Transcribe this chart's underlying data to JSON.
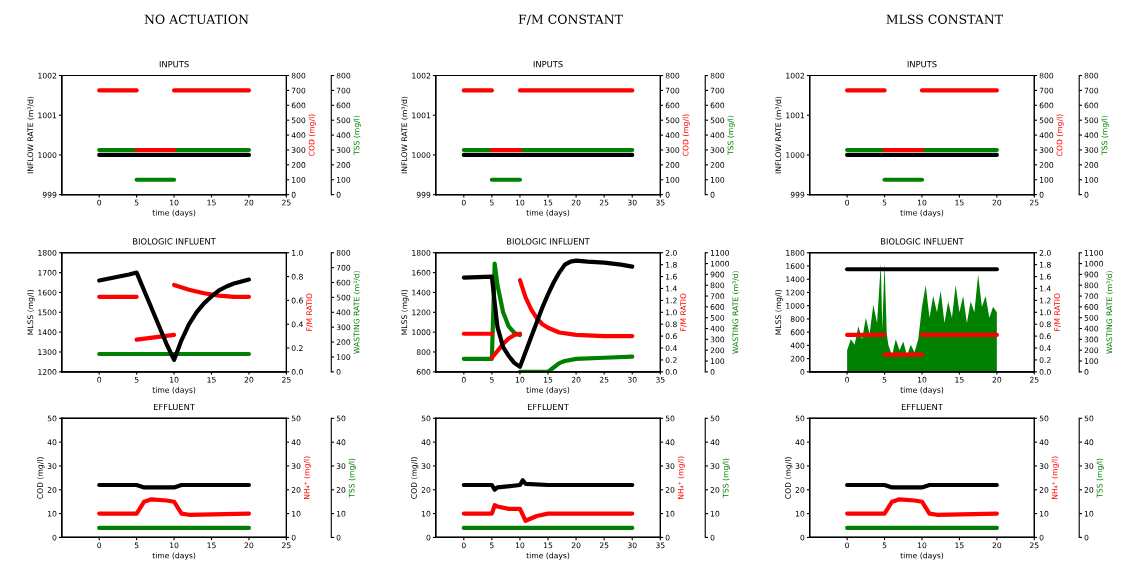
{
  "chart_data": [
    {
      "type": "line",
      "title": "NO ACTUATION",
      "subtitle": "INPUTS",
      "xlabel": "time (days)",
      "ylabel": "INFLOW RATE (m³/d)",
      "y2label": "COD (mg/l)",
      "y3label": "TSS (mg/l)",
      "xlim": [
        -5,
        25
      ],
      "xticks": [
        0,
        5,
        10,
        15,
        20,
        25
      ],
      "ylim": [
        999,
        1002
      ],
      "yticks": [
        999,
        1000,
        1001,
        1002
      ],
      "y2lim": [
        0,
        800
      ],
      "y2ticks": [
        0,
        100,
        200,
        300,
        400,
        500,
        600,
        700,
        800
      ],
      "y3lim": [
        0,
        800
      ],
      "y3ticks": [
        0,
        100,
        200,
        300,
        400,
        500,
        600,
        700,
        800
      ],
      "grid": false,
      "legend": false,
      "line_style": "solid",
      "series": [
        {
          "color": "#000000",
          "x": [
            0,
            20
          ],
          "values": [
            1000,
            1000
          ]
        },
        {
          "color": "#008000",
          "axis": "y3",
          "x": [
            0,
            5
          ],
          "values": [
            300,
            300
          ]
        },
        {
          "color": "#008000",
          "axis": "y3",
          "x": [
            5,
            10
          ],
          "values": [
            100,
            100
          ]
        },
        {
          "color": "#008000",
          "axis": "y3",
          "x": [
            10,
            20
          ],
          "values": [
            300,
            300
          ]
        },
        {
          "color": "#ff0000",
          "axis": "y2",
          "x": [
            0,
            5
          ],
          "values": [
            700,
            700
          ]
        },
        {
          "color": "#ff0000",
          "axis": "y2",
          "x": [
            5,
            10
          ],
          "values": [
            300,
            300
          ]
        },
        {
          "color": "#ff0000",
          "axis": "y2",
          "x": [
            10,
            20
          ],
          "values": [
            700,
            700
          ]
        }
      ]
    },
    {
      "type": "line",
      "title": "F/M CONSTANT",
      "subtitle": "INPUTS",
      "xlabel": "time (days)",
      "ylabel": "INFLOW RATE (m³/d)",
      "y2label": "COD (mg/l)",
      "y3label": "TSS (mg/l)",
      "xlim": [
        -5,
        35
      ],
      "xticks": [
        0,
        5,
        10,
        15,
        20,
        25,
        30,
        35
      ],
      "ylim": [
        999,
        1002
      ],
      "yticks": [
        999,
        1000,
        1001,
        1002
      ],
      "y2lim": [
        0,
        800
      ],
      "y2ticks": [
        0,
        100,
        200,
        300,
        400,
        500,
        600,
        700,
        800
      ],
      "y3lim": [
        0,
        800
      ],
      "y3ticks": [
        0,
        100,
        200,
        300,
        400,
        500,
        600,
        700,
        800
      ],
      "grid": false,
      "legend": false,
      "line_style": "solid",
      "series": [
        {
          "color": "#000000",
          "x": [
            0,
            30
          ],
          "values": [
            1000,
            1000
          ]
        },
        {
          "color": "#008000",
          "axis": "y3",
          "x": [
            0,
            5
          ],
          "values": [
            300,
            300
          ]
        },
        {
          "color": "#008000",
          "axis": "y3",
          "x": [
            5,
            10
          ],
          "values": [
            100,
            100
          ]
        },
        {
          "color": "#008000",
          "axis": "y3",
          "x": [
            10,
            30
          ],
          "values": [
            300,
            300
          ]
        },
        {
          "color": "#ff0000",
          "axis": "y2",
          "x": [
            0,
            5
          ],
          "values": [
            700,
            700
          ]
        },
        {
          "color": "#ff0000",
          "axis": "y2",
          "x": [
            5,
            10
          ],
          "values": [
            300,
            300
          ]
        },
        {
          "color": "#ff0000",
          "axis": "y2",
          "x": [
            10,
            30
          ],
          "values": [
            700,
            700
          ]
        }
      ]
    },
    {
      "type": "line",
      "title": "MLSS CONSTANT",
      "subtitle": "INPUTS",
      "xlabel": "time (days)",
      "ylabel": "INFLOW RATE (m³/d)",
      "y2label": "COD (mg/l)",
      "y3label": "TSS (mg/l)",
      "xlim": [
        -5,
        25
      ],
      "xticks": [
        0,
        5,
        10,
        15,
        20,
        25
      ],
      "ylim": [
        999,
        1002
      ],
      "yticks": [
        999,
        1000,
        1001,
        1002
      ],
      "y2lim": [
        0,
        800
      ],
      "y2ticks": [
        0,
        100,
        200,
        300,
        400,
        500,
        600,
        700,
        800
      ],
      "y3lim": [
        0,
        800
      ],
      "y3ticks": [
        0,
        100,
        200,
        300,
        400,
        500,
        600,
        700,
        800
      ],
      "grid": false,
      "legend": false,
      "line_style": "solid",
      "series": [
        {
          "color": "#000000",
          "x": [
            0,
            20
          ],
          "values": [
            1000,
            1000
          ]
        },
        {
          "color": "#008000",
          "axis": "y3",
          "x": [
            0,
            5
          ],
          "values": [
            300,
            300
          ]
        },
        {
          "color": "#008000",
          "axis": "y3",
          "x": [
            5,
            10
          ],
          "values": [
            100,
            100
          ]
        },
        {
          "color": "#008000",
          "axis": "y3",
          "x": [
            10,
            20
          ],
          "values": [
            300,
            300
          ]
        },
        {
          "color": "#ff0000",
          "axis": "y2",
          "x": [
            0,
            5
          ],
          "values": [
            700,
            700
          ]
        },
        {
          "color": "#ff0000",
          "axis": "y2",
          "x": [
            5,
            10
          ],
          "values": [
            300,
            300
          ]
        },
        {
          "color": "#ff0000",
          "axis": "y2",
          "x": [
            10,
            20
          ],
          "values": [
            700,
            700
          ]
        }
      ]
    },
    {
      "type": "line",
      "title": "BIOLOGIC INFLUENT",
      "xlabel": "time (days)",
      "ylabel": "MLSS (mg/l)",
      "y2label": "F/M RATIO",
      "y3label": "WASTING RATE (m³/d)",
      "xlim": [
        -5,
        25
      ],
      "xticks": [
        0,
        5,
        10,
        15,
        20,
        25
      ],
      "ylim": [
        1200,
        1800
      ],
      "yticks": [
        1200,
        1300,
        1400,
        1500,
        1600,
        1700,
        1800
      ],
      "y2lim": [
        0,
        1.0
      ],
      "y2ticks": [
        {
          "value": 0,
          "label": "0.0"
        },
        0.2,
        0.4,
        0.6,
        0.8,
        {
          "value": 1.0,
          "label": "1.0"
        }
      ],
      "y3lim": [
        0,
        800
      ],
      "y3ticks": [
        0,
        100,
        200,
        300,
        400,
        500,
        600,
        700,
        800
      ],
      "grid": false,
      "legend": false,
      "line_style": "solid",
      "series": [
        {
          "color": "#008000",
          "axis": "y3",
          "x": [
            0,
            20
          ],
          "values": [
            120,
            120
          ]
        },
        {
          "color": "#ff0000",
          "axis": "y2",
          "x": [
            0,
            5
          ],
          "values": [
            0.63,
            0.63
          ]
        },
        {
          "color": "#ff0000",
          "axis": "y2",
          "x": [
            5,
            10
          ],
          "values": [
            0.27,
            0.31
          ]
        },
        {
          "color": "#ff0000",
          "axis": "y2",
          "x": [
            10,
            12,
            14,
            16,
            18,
            20
          ],
          "values": [
            0.73,
            0.69,
            0.66,
            0.64,
            0.63,
            0.63
          ]
        },
        {
          "color": "#000000",
          "x": [
            0,
            2,
            4,
            5,
            6,
            7,
            8,
            9,
            10,
            11,
            12,
            13,
            14,
            15,
            16,
            17,
            18,
            19,
            20
          ],
          "values": [
            1660,
            1675,
            1690,
            1700,
            1610,
            1520,
            1430,
            1340,
            1260,
            1360,
            1440,
            1500,
            1545,
            1580,
            1610,
            1630,
            1645,
            1655,
            1665
          ]
        }
      ]
    },
    {
      "type": "line",
      "title": "BIOLOGIC INFLUENT",
      "xlabel": "time (days)",
      "ylabel": "MLSS (mg/l)",
      "y2label": "F/M RATIO",
      "y3label": "WASTING RATE (m³/d)",
      "xlim": [
        -5,
        35
      ],
      "xticks": [
        0,
        5,
        10,
        15,
        20,
        25,
        30,
        35
      ],
      "ylim": [
        600,
        1800
      ],
      "yticks": [
        600,
        800,
        1000,
        1200,
        1400,
        1600,
        1800
      ],
      "y2lim": [
        0,
        2.0
      ],
      "y2ticks": [
        {
          "value": 0,
          "label": "0.0"
        },
        0.2,
        0.4,
        0.6,
        0.8,
        {
          "value": 1.0,
          "label": "1.0"
        },
        1.2,
        1.4,
        1.6,
        1.8,
        {
          "value": 2.0,
          "label": "2.0"
        }
      ],
      "y3lim": [
        0,
        1100
      ],
      "y3ticks": [
        0,
        100,
        200,
        300,
        400,
        500,
        600,
        700,
        800,
        900,
        1000,
        1100
      ],
      "grid": false,
      "legend": false,
      "line_style": "solid",
      "series": [
        {
          "color": "#008000",
          "axis": "y3",
          "x": [
            0,
            5,
            5.5,
            6,
            7,
            8,
            9,
            10
          ],
          "values": [
            120,
            120,
            1000,
            800,
            550,
            420,
            360,
            340
          ]
        },
        {
          "color": "#008000",
          "axis": "y3",
          "x": [
            10,
            15,
            16,
            17,
            18,
            20,
            25,
            30
          ],
          "values": [
            0,
            0,
            40,
            80,
            100,
            120,
            130,
            140
          ]
        },
        {
          "color": "#ff0000",
          "axis": "y2",
          "x": [
            0,
            5
          ],
          "values": [
            0.64,
            0.64
          ]
        },
        {
          "color": "#ff0000",
          "axis": "y2",
          "x": [
            5,
            6,
            7,
            8,
            9,
            10
          ],
          "values": [
            0.24,
            0.35,
            0.47,
            0.56,
            0.62,
            0.64
          ]
        },
        {
          "color": "#ff0000",
          "axis": "y2",
          "x": [
            10,
            11,
            12,
            13,
            14,
            15,
            17,
            20,
            25,
            30
          ],
          "values": [
            1.54,
            1.25,
            1.05,
            0.9,
            0.8,
            0.74,
            0.66,
            0.62,
            0.6,
            0.6
          ]
        },
        {
          "color": "#000000",
          "x": [
            0,
            5,
            5.5,
            6,
            7,
            8,
            9,
            10,
            11,
            12,
            13,
            14,
            15,
            16,
            17,
            18,
            19,
            20,
            22,
            25,
            28,
            30
          ],
          "values": [
            1550,
            1560,
            1300,
            1050,
            850,
            760,
            690,
            650,
            800,
            950,
            1100,
            1250,
            1380,
            1500,
            1600,
            1680,
            1710,
            1720,
            1710,
            1700,
            1680,
            1660
          ]
        }
      ]
    },
    {
      "type": "line",
      "title": "BIOLOGIC INFLUENT",
      "xlabel": "time (days)",
      "ylabel": "MLSS (mg/l)",
      "y2label": "F/M RATIO",
      "y3label": "WASTING RATE (m³/d)",
      "xlim": [
        -5,
        25
      ],
      "xticks": [
        0,
        5,
        10,
        15,
        20,
        25
      ],
      "ylim": [
        0,
        1800
      ],
      "yticks": [
        0,
        200,
        400,
        600,
        800,
        1000,
        1200,
        1400,
        1600,
        1800
      ],
      "y2lim": [
        0,
        2.0
      ],
      "y2ticks": [
        {
          "value": 0,
          "label": "0.0"
        },
        0.2,
        0.4,
        0.6,
        0.8,
        {
          "value": 1.0,
          "label": "1.0"
        },
        1.2,
        1.4,
        1.6,
        1.8,
        {
          "value": 2.0,
          "label": "2.0"
        }
      ],
      "y3lim": [
        0,
        1100
      ],
      "y3ticks": [
        0,
        100,
        200,
        300,
        400,
        500,
        600,
        700,
        800,
        900,
        1000,
        1100
      ],
      "grid": false,
      "legend": false,
      "line_style": "solid",
      "series": [
        {
          "type": "area",
          "color": "#008000",
          "axis": "y3",
          "x": [
            0,
            0.5,
            1,
            1.5,
            2,
            2.5,
            3,
            3.5,
            4,
            4.5,
            4.7,
            5,
            5.3,
            5.5,
            6,
            6.5,
            7,
            7.5,
            8,
            8.5,
            9,
            9.5,
            10,
            10.5,
            11,
            11.5,
            12,
            12.5,
            13,
            13.5,
            14,
            14.5,
            15,
            15.5,
            16,
            16.5,
            17,
            17.5,
            18,
            18.5,
            19,
            19.5,
            20
          ],
          "values": [
            200,
            300,
            250,
            420,
            300,
            500,
            350,
            620,
            450,
            1000,
            400,
            1000,
            350,
            250,
            150,
            300,
            200,
            280,
            150,
            250,
            180,
            300,
            600,
            800,
            500,
            700,
            550,
            750,
            450,
            650,
            500,
            800,
            550,
            700,
            450,
            650,
            550,
            900,
            600,
            700,
            500,
            600,
            550
          ]
        },
        {
          "color": "#ff0000",
          "axis": "y2",
          "x": [
            0,
            5
          ],
          "values": [
            0.62,
            0.62
          ]
        },
        {
          "color": "#ff0000",
          "axis": "y2",
          "x": [
            5,
            10
          ],
          "values": [
            0.29,
            0.29
          ]
        },
        {
          "color": "#ff0000",
          "axis": "y2",
          "x": [
            10,
            20
          ],
          "values": [
            0.62,
            0.62
          ]
        },
        {
          "color": "#000000",
          "x": [
            0,
            20
          ],
          "values": [
            1550,
            1550
          ]
        }
      ]
    },
    {
      "type": "line",
      "title": "EFFLUENT",
      "xlabel": "time (days)",
      "ylabel": "COD (mg/l)",
      "y2label": "NH₄⁺ (mg/l)",
      "y3label": "TSS (mg/l)",
      "xlim": [
        -5,
        25
      ],
      "xticks": [
        0,
        5,
        10,
        15,
        20,
        25
      ],
      "ylim": [
        0,
        50
      ],
      "yticks": [
        0,
        10,
        20,
        30,
        40,
        50
      ],
      "y2lim": [
        0,
        50
      ],
      "y2ticks": [
        0,
        10,
        20,
        30,
        40,
        50
      ],
      "y3lim": [
        0,
        50
      ],
      "y3ticks": [
        0,
        10,
        20,
        30,
        40,
        50
      ],
      "grid": false,
      "legend": false,
      "line_style": "solid",
      "series": [
        {
          "color": "#008000",
          "axis": "y3",
          "x": [
            0,
            20
          ],
          "values": [
            4,
            4
          ]
        },
        {
          "color": "#ff0000",
          "axis": "y2",
          "x": [
            0,
            5,
            6,
            7,
            9,
            10,
            11,
            12,
            20
          ],
          "values": [
            10,
            10,
            15,
            16,
            15.5,
            15,
            10,
            9.5,
            10
          ]
        },
        {
          "color": "#000000",
          "x": [
            0,
            5,
            6,
            10,
            11,
            20
          ],
          "values": [
            22,
            22,
            21,
            21,
            22,
            22
          ]
        }
      ]
    },
    {
      "type": "line",
      "title": "EFFLUENT",
      "xlabel": "time (days)",
      "ylabel": "COD (mg/l)",
      "y2label": "NH₄⁺ (mg/l)",
      "y3label": "TSS (mg/l)",
      "xlim": [
        -5,
        35
      ],
      "xticks": [
        0,
        5,
        10,
        15,
        20,
        25,
        30,
        35
      ],
      "ylim": [
        0,
        50
      ],
      "yticks": [
        0,
        10,
        20,
        30,
        40,
        50
      ],
      "y2lim": [
        0,
        50
      ],
      "y2ticks": [
        0,
        10,
        20,
        30,
        40,
        50
      ],
      "y3lim": [
        0,
        50
      ],
      "y3ticks": [
        0,
        10,
        20,
        30,
        40,
        50
      ],
      "grid": false,
      "legend": false,
      "line_style": "solid",
      "series": [
        {
          "color": "#008000",
          "axis": "y3",
          "x": [
            0,
            30
          ],
          "values": [
            4,
            4
          ]
        },
        {
          "color": "#ff0000",
          "axis": "y2",
          "x": [
            0,
            5,
            5.5,
            6,
            8,
            10,
            11,
            13,
            15,
            20,
            30
          ],
          "values": [
            10,
            10,
            13.5,
            13,
            12,
            12,
            7,
            9,
            10,
            10,
            10
          ]
        },
        {
          "color": "#000000",
          "x": [
            0,
            5,
            5.5,
            6,
            10,
            10.5,
            11,
            15,
            30
          ],
          "values": [
            22,
            22,
            20,
            21,
            22,
            24,
            22.5,
            22,
            22
          ]
        }
      ]
    },
    {
      "type": "line",
      "title": "EFFLUENT",
      "xlabel": "time (days)",
      "ylabel": "COD (mg/l)",
      "y2label": "NH₄⁺ (mg/l)",
      "y3label": "TSS (mg/l)",
      "xlim": [
        -5,
        25
      ],
      "xticks": [
        0,
        5,
        10,
        15,
        20,
        25
      ],
      "ylim": [
        0,
        50
      ],
      "yticks": [
        0,
        10,
        20,
        30,
        40,
        50
      ],
      "y2lim": [
        0,
        50
      ],
      "y2ticks": [
        0,
        10,
        20,
        30,
        40,
        50
      ],
      "y3lim": [
        0,
        50
      ],
      "y3ticks": [
        0,
        10,
        20,
        30,
        40,
        50
      ],
      "grid": false,
      "legend": false,
      "line_style": "solid",
      "series": [
        {
          "color": "#008000",
          "axis": "y3",
          "x": [
            0,
            20
          ],
          "values": [
            4,
            4
          ]
        },
        {
          "color": "#ff0000",
          "axis": "y2",
          "x": [
            0,
            5,
            6,
            7,
            9,
            10,
            11,
            12,
            20
          ],
          "values": [
            10,
            10,
            15,
            16,
            15.5,
            15,
            10,
            9.5,
            10
          ]
        },
        {
          "color": "#000000",
          "x": [
            0,
            5,
            6,
            10,
            11,
            20
          ],
          "values": [
            22,
            22,
            21,
            21,
            22,
            22
          ]
        }
      ]
    }
  ]
}
